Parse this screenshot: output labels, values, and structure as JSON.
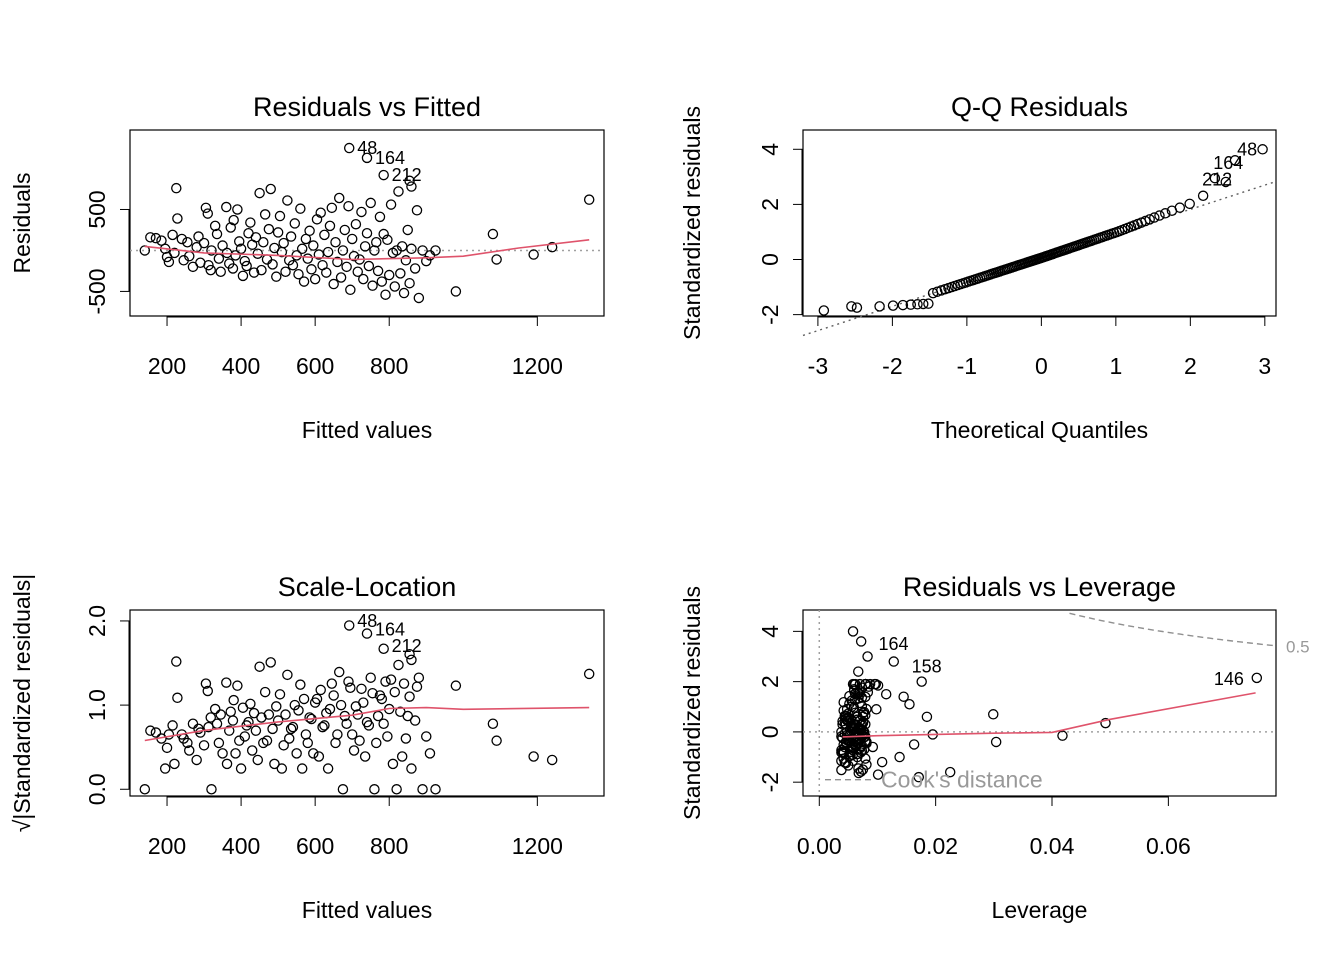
{
  "chart_data": [
    {
      "type": "scatter",
      "title": "Residuals vs Fitted",
      "xlabel": "Fitted values",
      "ylabel": "Residuals",
      "xlim": [
        100,
        1380
      ],
      "ylim": [
        -800,
        1470
      ],
      "xticks": [
        200,
        400,
        600,
        800,
        1200
      ],
      "yticks": [
        -500,
        500
      ],
      "tick_labels_x": [
        "200",
        "400",
        "600",
        "800",
        "1200"
      ],
      "tick_labels_y": [
        "-500",
        "500"
      ],
      "reference_line": {
        "y": 0,
        "style": "dotted",
        "color": "#a0a0a0"
      },
      "smooth_color": "#df536b",
      "smooth": [
        [
          140,
          50
        ],
        [
          300,
          -30
        ],
        [
          500,
          -60
        ],
        [
          700,
          -110
        ],
        [
          900,
          -90
        ],
        [
          1000,
          -70
        ],
        [
          1150,
          30
        ],
        [
          1340,
          130
        ]
      ],
      "labels": [
        {
          "text": "48",
          "x": 692,
          "y": 1250
        },
        {
          "text": "164",
          "x": 740,
          "y": 1130
        },
        {
          "text": "212",
          "x": 785,
          "y": 920
        }
      ],
      "points": [
        [
          140,
          0
        ],
        [
          155,
          160
        ],
        [
          170,
          150
        ],
        [
          185,
          120
        ],
        [
          195,
          20
        ],
        [
          200,
          -80
        ],
        [
          205,
          -140
        ],
        [
          215,
          190
        ],
        [
          220,
          -30
        ],
        [
          225,
          760
        ],
        [
          228,
          390
        ],
        [
          240,
          140
        ],
        [
          245,
          -120
        ],
        [
          255,
          100
        ],
        [
          260,
          -70
        ],
        [
          270,
          -200
        ],
        [
          280,
          40
        ],
        [
          285,
          170
        ],
        [
          290,
          -150
        ],
        [
          300,
          90
        ],
        [
          305,
          520
        ],
        [
          310,
          450
        ],
        [
          312,
          -180
        ],
        [
          318,
          -240
        ],
        [
          320,
          0
        ],
        [
          330,
          300
        ],
        [
          335,
          200
        ],
        [
          340,
          -100
        ],
        [
          345,
          -260
        ],
        [
          350,
          60
        ],
        [
          360,
          530
        ],
        [
          362,
          -30
        ],
        [
          368,
          -160
        ],
        [
          372,
          280
        ],
        [
          378,
          -220
        ],
        [
          380,
          370
        ],
        [
          385,
          -60
        ],
        [
          390,
          500
        ],
        [
          395,
          110
        ],
        [
          400,
          20
        ],
        [
          405,
          -310
        ],
        [
          410,
          -130
        ],
        [
          415,
          -190
        ],
        [
          420,
          210
        ],
        [
          425,
          340
        ],
        [
          430,
          70
        ],
        [
          435,
          -270
        ],
        [
          440,
          160
        ],
        [
          445,
          -40
        ],
        [
          450,
          700
        ],
        [
          455,
          -240
        ],
        [
          460,
          100
        ],
        [
          465,
          440
        ],
        [
          470,
          -110
        ],
        [
          475,
          260
        ],
        [
          480,
          750
        ],
        [
          485,
          -170
        ],
        [
          490,
          30
        ],
        [
          495,
          -320
        ],
        [
          500,
          220
        ],
        [
          505,
          420
        ],
        [
          510,
          -20
        ],
        [
          515,
          90
        ],
        [
          520,
          -260
        ],
        [
          525,
          610
        ],
        [
          530,
          -120
        ],
        [
          535,
          170
        ],
        [
          540,
          -180
        ],
        [
          545,
          330
        ],
        [
          550,
          -60
        ],
        [
          555,
          -290
        ],
        [
          560,
          510
        ],
        [
          565,
          20
        ],
        [
          570,
          -380
        ],
        [
          575,
          140
        ],
        [
          580,
          -100
        ],
        [
          585,
          240
        ],
        [
          590,
          -230
        ],
        [
          595,
          60
        ],
        [
          600,
          -350
        ],
        [
          605,
          380
        ],
        [
          610,
          -50
        ],
        [
          615,
          460
        ],
        [
          620,
          -180
        ],
        [
          625,
          190
        ],
        [
          630,
          -270
        ],
        [
          635,
          -20
        ],
        [
          640,
          300
        ],
        [
          645,
          520
        ],
        [
          650,
          -410
        ],
        [
          655,
          100
        ],
        [
          660,
          -140
        ],
        [
          665,
          640
        ],
        [
          670,
          -330
        ],
        [
          675,
          0
        ],
        [
          680,
          250
        ],
        [
          685,
          -200
        ],
        [
          690,
          540
        ],
        [
          695,
          -480
        ],
        [
          700,
          140
        ],
        [
          705,
          -70
        ],
        [
          710,
          320
        ],
        [
          715,
          -260
        ],
        [
          720,
          -110
        ],
        [
          725,
          470
        ],
        [
          730,
          -350
        ],
        [
          735,
          50
        ],
        [
          740,
          210
        ],
        [
          745,
          -190
        ],
        [
          750,
          580
        ],
        [
          755,
          -430
        ],
        [
          760,
          0
        ],
        [
          765,
          100
        ],
        [
          770,
          -250
        ],
        [
          775,
          410
        ],
        [
          780,
          -380
        ],
        [
          785,
          200
        ],
        [
          790,
          -540
        ],
        [
          795,
          130
        ],
        [
          800,
          -300
        ],
        [
          805,
          560
        ],
        [
          810,
          -30
        ],
        [
          815,
          -440
        ],
        [
          820,
          0
        ],
        [
          825,
          720
        ],
        [
          830,
          -280
        ],
        [
          835,
          50
        ],
        [
          840,
          -520
        ],
        [
          845,
          -120
        ],
        [
          850,
          250
        ],
        [
          855,
          -400
        ],
        [
          860,
          20
        ],
        [
          870,
          -220
        ],
        [
          880,
          -580
        ],
        [
          890,
          0
        ],
        [
          900,
          -130
        ],
        [
          910,
          -60
        ],
        [
          925,
          0
        ],
        [
          980,
          -500
        ],
        [
          1080,
          200
        ],
        [
          1090,
          -110
        ],
        [
          1190,
          -50
        ],
        [
          1240,
          40
        ],
        [
          1340,
          620
        ],
        [
          692,
          1250
        ],
        [
          740,
          1130
        ],
        [
          785,
          920
        ],
        [
          855,
          850
        ],
        [
          860,
          780
        ],
        [
          875,
          490
        ]
      ]
    },
    {
      "type": "scatter",
      "title": "Q-Q Residuals",
      "xlabel": "Theoretical Quantiles",
      "ylabel": "Standardized residuals",
      "xlim": [
        -3.2,
        3.15
      ],
      "ylim": [
        -2.05,
        4.7
      ],
      "xticks": [
        -3,
        -2,
        -1,
        0,
        1,
        2,
        3
      ],
      "yticks": [
        -2,
        0,
        2,
        4
      ],
      "tick_labels_x": [
        "-3",
        "-2",
        "-1",
        "0",
        "1",
        "2",
        "3"
      ],
      "tick_labels_y": [
        "-2",
        "0",
        "2",
        "4"
      ],
      "reference_line": {
        "type": "line",
        "intercept": 0.06,
        "slope": 0.88,
        "style": "dotted",
        "color": "#606060"
      },
      "labels": [
        {
          "text": "48",
          "x": 2.52,
          "y": 4.0
        },
        {
          "text": "164",
          "x": 2.2,
          "y": 3.5
        },
        {
          "text": "212",
          "x": 2.05,
          "y": 2.9
        }
      ],
      "points_qq": {
        "n": 300,
        "formula": "standardized-residual quantiles"
      }
    },
    {
      "type": "scatter",
      "title": "Scale-Location",
      "xlabel": "Fitted values",
      "ylabel": "√|Standardized residuals|",
      "xlim": [
        100,
        1380
      ],
      "ylim": [
        -0.08,
        2.13
      ],
      "xticks": [
        200,
        400,
        600,
        800,
        1200
      ],
      "yticks": [
        0.0,
        1.0,
        2.0
      ],
      "tick_labels_x": [
        "200",
        "400",
        "600",
        "800",
        "1200"
      ],
      "tick_labels_y": [
        "0.0",
        "1.0",
        "2.0"
      ],
      "smooth_color": "#df536b",
      "smooth": [
        [
          140,
          0.58
        ],
        [
          300,
          0.7
        ],
        [
          500,
          0.8
        ],
        [
          700,
          0.88
        ],
        [
          800,
          0.96
        ],
        [
          900,
          0.97
        ],
        [
          1000,
          0.95
        ],
        [
          1340,
          0.97
        ]
      ],
      "labels": [
        {
          "text": "48",
          "x": 692,
          "y": 2.0
        },
        {
          "text": "164",
          "x": 740,
          "y": 1.9
        },
        {
          "text": "212",
          "x": 785,
          "y": 1.7
        }
      ]
    },
    {
      "type": "scatter",
      "title": "Residuals vs Leverage",
      "xlabel": "Leverage",
      "ylabel": "Standardized residuals",
      "xlim": [
        -0.0028,
        0.0785
      ],
      "ylim": [
        -2.55,
        4.85
      ],
      "xticks": [
        0.0,
        0.02,
        0.04,
        0.06
      ],
      "yticks": [
        -2,
        0,
        2,
        4
      ],
      "tick_labels_x": [
        "0.00",
        "0.02",
        "0.04",
        "0.06"
      ],
      "tick_labels_y": [
        "-2",
        "0",
        "2",
        "4"
      ],
      "contour_label": "0.5",
      "legend_text": "Cook's distance",
      "smooth_color": "#df536b",
      "smooth": [
        [
          0.004,
          -0.2
        ],
        [
          0.01,
          -0.15
        ],
        [
          0.02,
          -0.1
        ],
        [
          0.03,
          -0.05
        ],
        [
          0.04,
          -0.02
        ],
        [
          0.05,
          0.5
        ],
        [
          0.075,
          1.55
        ]
      ],
      "labels": [
        {
          "text": "164",
          "x": 0.0088,
          "y": 3.5
        },
        {
          "text": "158",
          "x": 0.0145,
          "y": 2.6
        },
        {
          "text": "146",
          "x": 0.0685,
          "y": 2.1
        }
      ],
      "points_extra": [
        [
          0.0058,
          4.0
        ],
        [
          0.0072,
          3.6
        ],
        [
          0.0128,
          2.8
        ],
        [
          0.0083,
          3.0
        ],
        [
          0.0752,
          2.15
        ],
        [
          0.0299,
          0.7
        ],
        [
          0.0304,
          -0.4
        ],
        [
          0.0418,
          -0.15
        ],
        [
          0.0492,
          0.35
        ],
        [
          0.0225,
          -1.6
        ],
        [
          0.0171,
          -1.8
        ],
        [
          0.0176,
          2.0
        ],
        [
          0.0145,
          1.4
        ],
        [
          0.0155,
          1.1
        ],
        [
          0.0185,
          0.6
        ],
        [
          0.0195,
          -0.1
        ],
        [
          0.0163,
          -0.5
        ],
        [
          0.0138,
          -1.0
        ],
        [
          0.0108,
          -1.2
        ],
        [
          0.0115,
          1.5
        ],
        [
          0.0098,
          0.9
        ],
        [
          0.0092,
          -0.6
        ],
        [
          0.0085,
          1.8
        ],
        [
          0.0067,
          2.4
        ],
        [
          0.0075,
          -1.5
        ],
        [
          0.0062,
          0.3
        ]
      ]
    }
  ]
}
